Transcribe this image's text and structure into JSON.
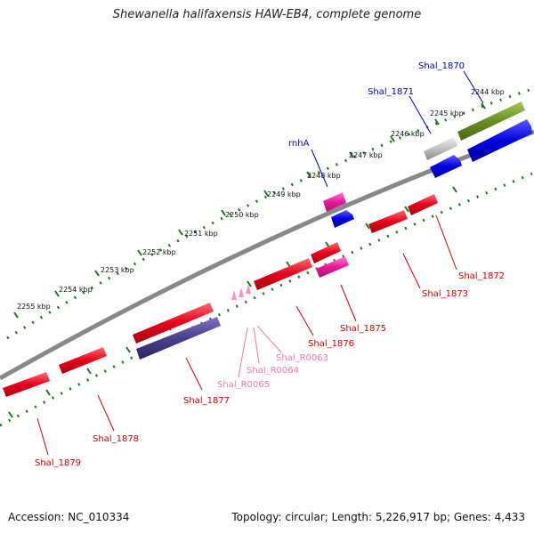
{
  "title": "Shewanella halifaxensis HAW-EB4, complete genome",
  "footer": {
    "accession": "Accession: NC_010334",
    "summary": "Topology: circular; Length: 5,226,917 bp; Genes: 4,433"
  },
  "colors": {
    "backbone": "#7a7a7a",
    "tick": "#1a7a1a",
    "red_gene": "#e8001a",
    "blue_gene": "#0000e0",
    "magenta_gene": "#e8189a",
    "purple_gene": "#4a3f8c",
    "olive_gene": "#6b8e23",
    "gray_gene": "#b8b8b8",
    "pink_rna": "#ff8fc8",
    "label_red": "#d40000",
    "label_blue": "#0000cc",
    "label_pink": "#f07aaf"
  },
  "kbp_labels": [
    "2244 kbp",
    "2245 kbp",
    "2246 kbp",
    "2247 kbp",
    "2248 kbp",
    "2249 kbp",
    "2250 kbp",
    "2251 kbp",
    "2252 kbp",
    "2253 kbp",
    "2254 kbp",
    "2255 kbp"
  ],
  "genes": {
    "forward": [
      {
        "name": "Shal_1870",
        "color": "olive"
      },
      {
        "name": "Shal_1871",
        "color": "gray"
      },
      {
        "name": "rnhA",
        "color": "magenta"
      }
    ],
    "reverse": [
      {
        "name": "Shal_1872",
        "color": "red"
      },
      {
        "name": "Shal_1873",
        "color": "red"
      },
      {
        "name": "Shal_1875",
        "color": "magenta"
      },
      {
        "name": "Shal_1876",
        "color": "red"
      },
      {
        "name": "Shal_R0063",
        "color": "pink"
      },
      {
        "name": "Shal_R0064",
        "color": "pink"
      },
      {
        "name": "Shal_R0065",
        "color": "pink"
      },
      {
        "name": "Shal_1877",
        "color": "purple"
      },
      {
        "name": "Shal_1878",
        "color": "red"
      },
      {
        "name": "Shal_1879",
        "color": "red"
      }
    ]
  }
}
